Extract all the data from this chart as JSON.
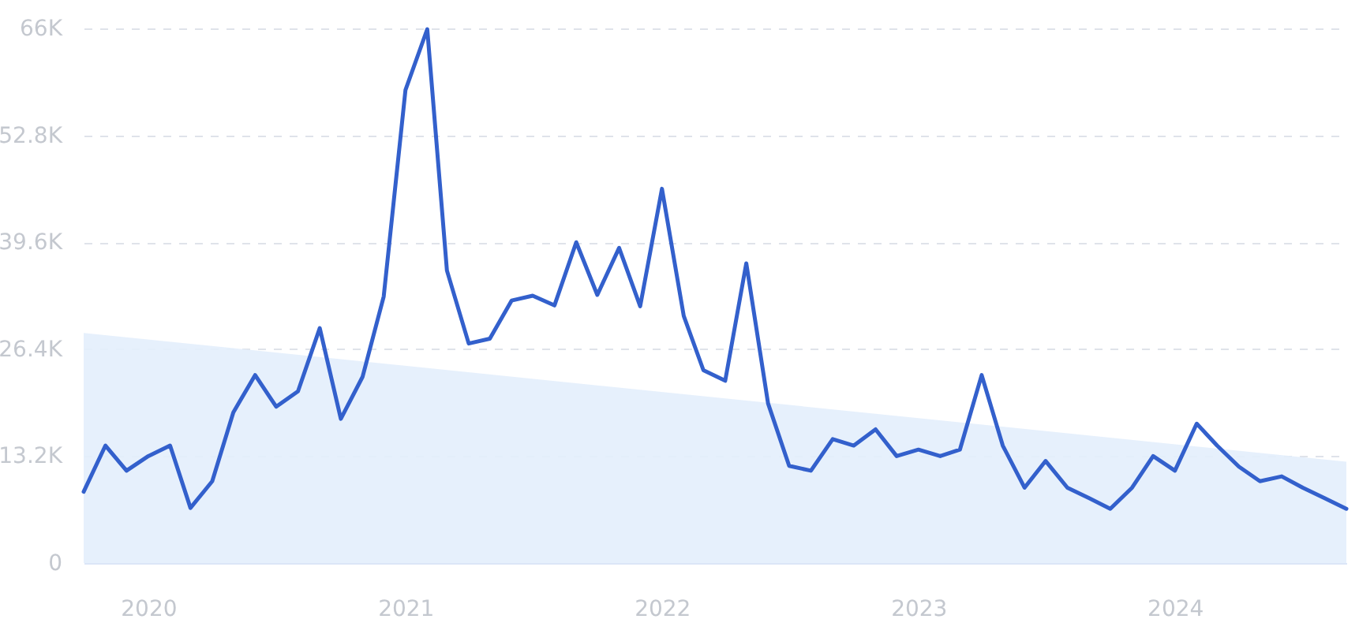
{
  "chart_data": {
    "type": "line",
    "x": [
      "2019-10",
      "2019-11",
      "2019-12",
      "2020-01",
      "2020-02",
      "2020-03",
      "2020-04",
      "2020-05",
      "2020-06",
      "2020-07",
      "2020-08",
      "2020-09",
      "2020-10",
      "2020-11",
      "2020-12",
      "2021-01",
      "2021-02",
      "2021-03",
      "2021-04",
      "2021-05",
      "2021-06",
      "2021-07",
      "2021-08",
      "2021-09",
      "2021-10",
      "2021-11",
      "2021-12",
      "2022-01",
      "2022-02",
      "2022-03",
      "2022-04",
      "2022-05",
      "2022-06",
      "2022-07",
      "2022-08",
      "2022-09",
      "2022-10",
      "2022-11",
      "2022-12",
      "2023-01",
      "2023-02",
      "2023-03",
      "2023-04",
      "2023-05",
      "2023-06",
      "2023-07",
      "2023-08",
      "2023-09",
      "2023-10",
      "2023-11",
      "2023-12",
      "2024-01",
      "2024-02",
      "2024-03",
      "2024-04",
      "2024-05",
      "2024-06",
      "2024-07",
      "2024-08",
      "2024-09"
    ],
    "series": [
      {
        "type": "area",
        "color": "#e3eefc",
        "x": [
          "2019-10",
          "2024-09"
        ],
        "values": [
          28400,
          12500
        ]
      },
      {
        "color": "#3360cc",
        "values": [
          8800,
          14500,
          11400,
          13200,
          14500,
          6800,
          10100,
          18600,
          23200,
          19300,
          21200,
          29000,
          17800,
          23000,
          32900,
          58400,
          65900,
          36100,
          27100,
          27700,
          32400,
          33000,
          31800,
          39600,
          33100,
          38900,
          31700,
          46200,
          30500,
          23800,
          22500,
          37000,
          19700,
          12000,
          11400,
          15300,
          14500,
          16500,
          13200,
          14000,
          13200,
          14000,
          23200,
          14500,
          9300,
          12600,
          9300,
          8000,
          6700,
          9300,
          13200,
          11400,
          17200,
          14500,
          11900,
          10100,
          10700,
          9300,
          8000,
          6700
        ]
      }
    ],
    "xlim": [
      "2019-10",
      "2024-09"
    ],
    "xticks": [
      "2020",
      "2021",
      "2022",
      "2023",
      "2024"
    ],
    "ylim": [
      0,
      66000
    ],
    "yticks": [
      0,
      {
        "value": 13200,
        "label": "13.2K"
      },
      {
        "value": 26400,
        "label": "26.4K"
      },
      {
        "value": 39600,
        "label": "39.6K"
      },
      {
        "value": 52800,
        "label": "52.8K"
      },
      {
        "value": 66000,
        "label": "66K"
      }
    ],
    "grid": "y"
  }
}
